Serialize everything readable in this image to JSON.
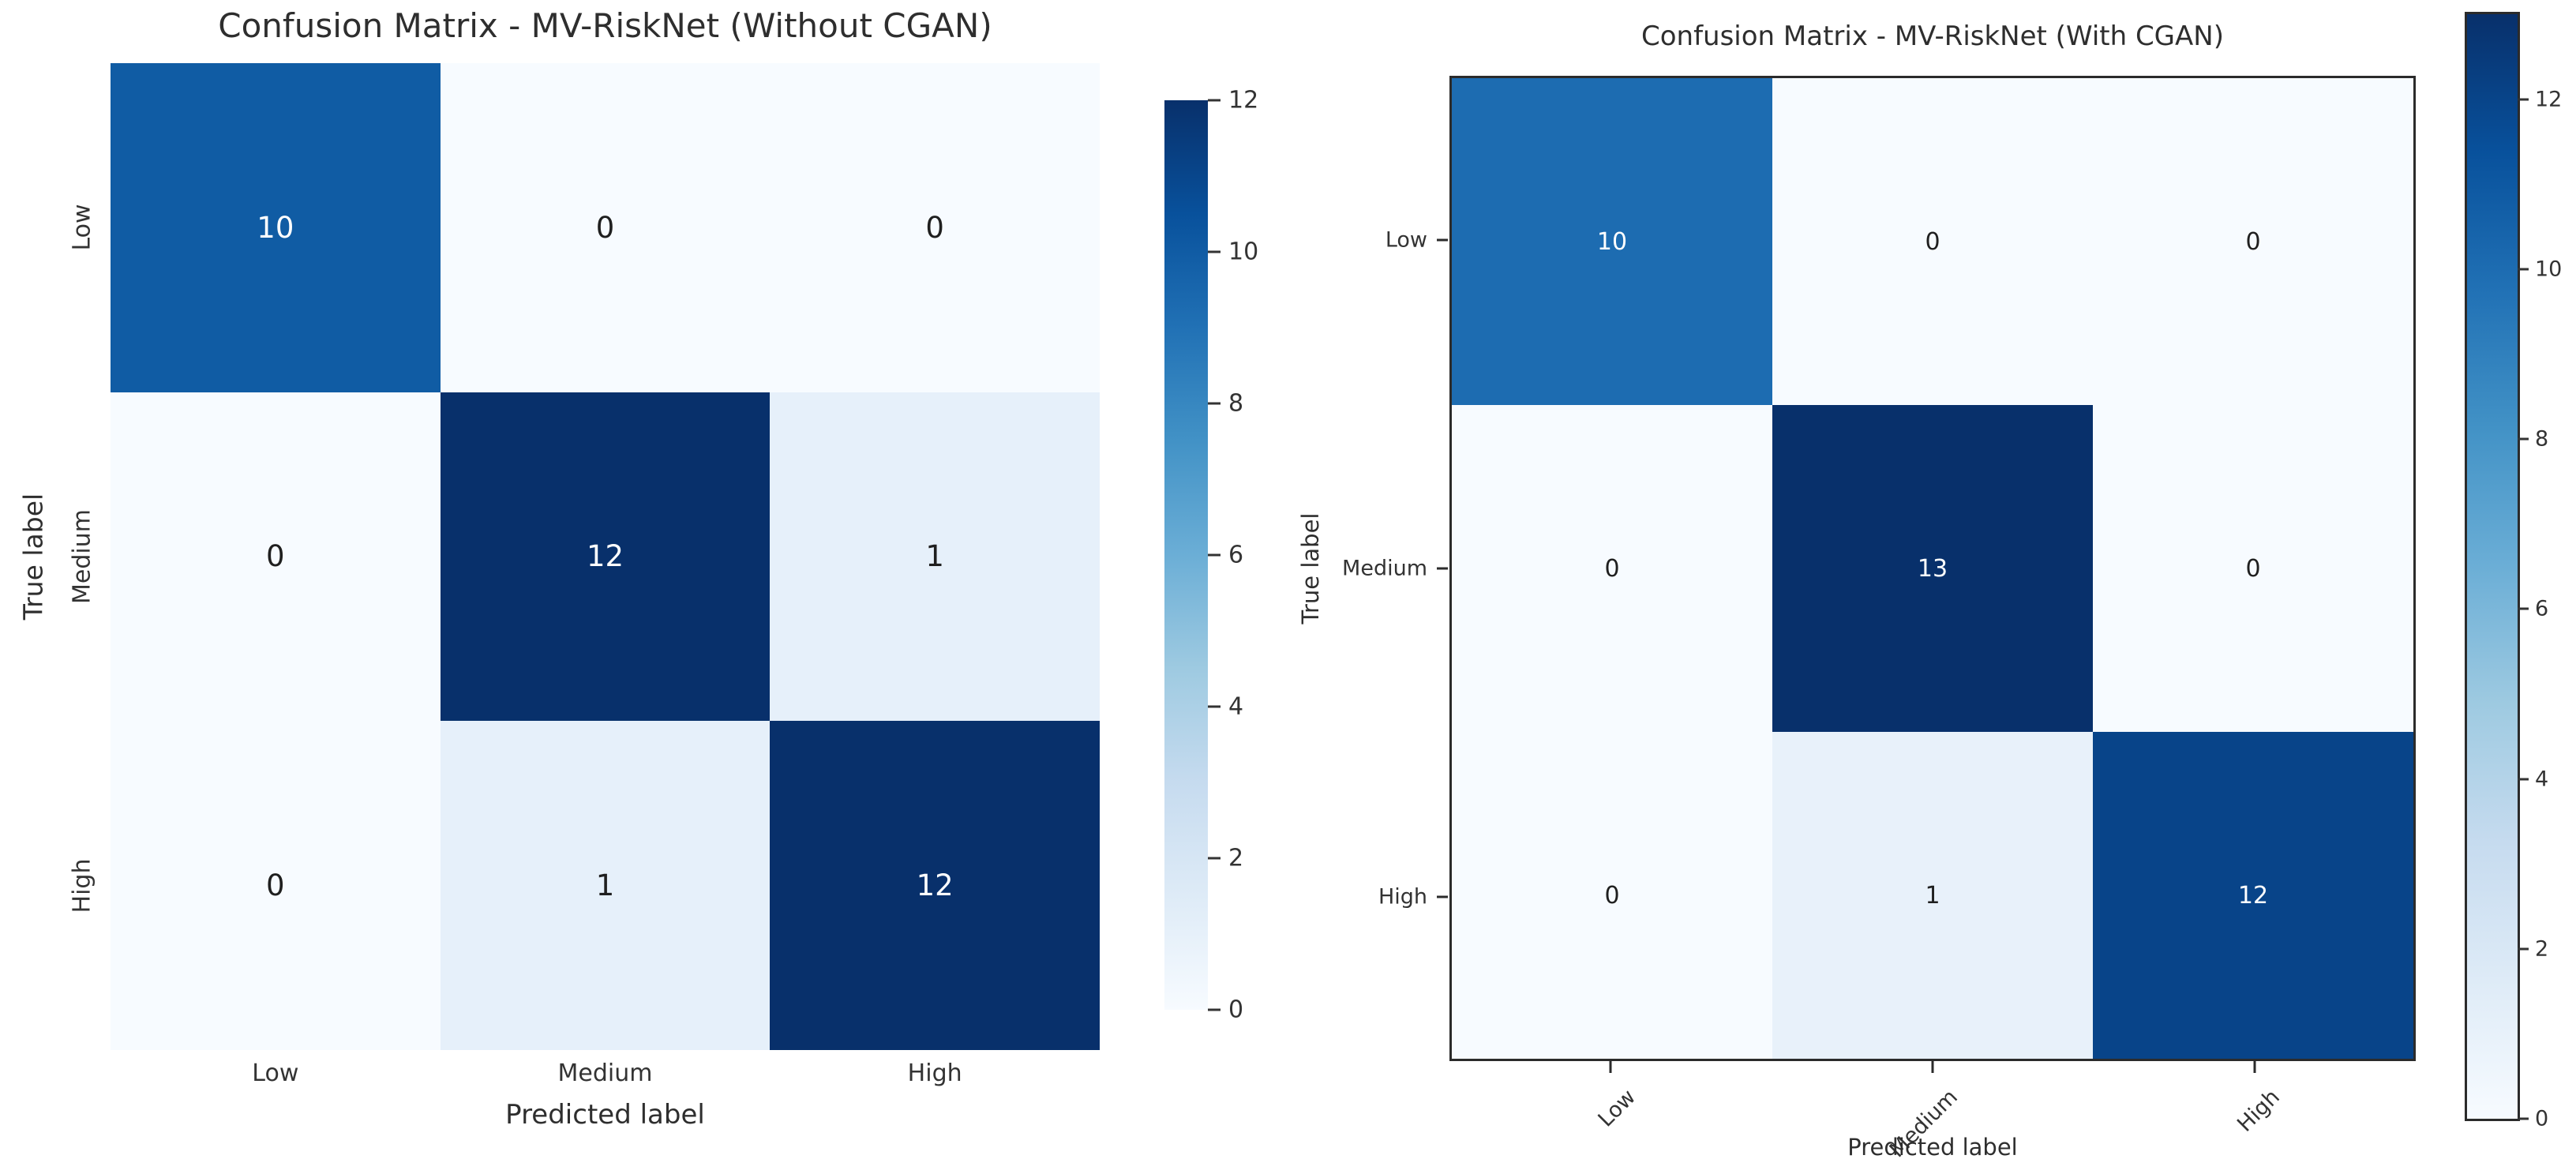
{
  "page": {
    "background": "#ffffff"
  },
  "colors": {
    "colormap_name": "Blues",
    "colormap_stops": [
      "#f7fbff",
      "#deebf7",
      "#c6dbef",
      "#9ecae1",
      "#6baed6",
      "#4292c6",
      "#2171b5",
      "#08519c",
      "#08306b"
    ],
    "cell_text_dark": "#1f1f1f",
    "cell_text_light": "#ffffff",
    "axis_text": "#333333",
    "frame": "#2b2b2b"
  },
  "chart_data": [
    {
      "type": "heatmap",
      "title": "Confusion Matrix - MV-RiskNet (Without CGAN)",
      "xlabel": "Predicted label",
      "ylabel": "True label",
      "x_categories": [
        "Low",
        "Medium",
        "High"
      ],
      "y_categories": [
        "Low",
        "Medium",
        "High"
      ],
      "matrix": [
        [
          10,
          0,
          0
        ],
        [
          0,
          12,
          1
        ],
        [
          0,
          1,
          12
        ]
      ],
      "vmin": 0,
      "vmax": 12,
      "colorbar_ticks": [
        0,
        2,
        4,
        6,
        8,
        10,
        12
      ],
      "x_tick_rotation": 0,
      "y_tick_rotation": 90,
      "axes_frame": false,
      "colorbar_frame": false,
      "legend_position": "right-colorbar",
      "grid": false
    },
    {
      "type": "heatmap",
      "title": "Confusion Matrix - MV-RiskNet (With CGAN)",
      "xlabel": "Predicted label",
      "ylabel": "True label",
      "x_categories": [
        "Low",
        "Medium",
        "High"
      ],
      "y_categories": [
        "Low",
        "Medium",
        "High"
      ],
      "matrix": [
        [
          10,
          0,
          0
        ],
        [
          0,
          13,
          0
        ],
        [
          0,
          1,
          12
        ]
      ],
      "vmin": 0,
      "vmax": 13,
      "colorbar_ticks": [
        0,
        2,
        4,
        6,
        8,
        10,
        12
      ],
      "x_tick_rotation": 45,
      "y_tick_rotation": 0,
      "axes_frame": true,
      "colorbar_frame": true,
      "legend_position": "right-colorbar",
      "grid": false
    }
  ]
}
